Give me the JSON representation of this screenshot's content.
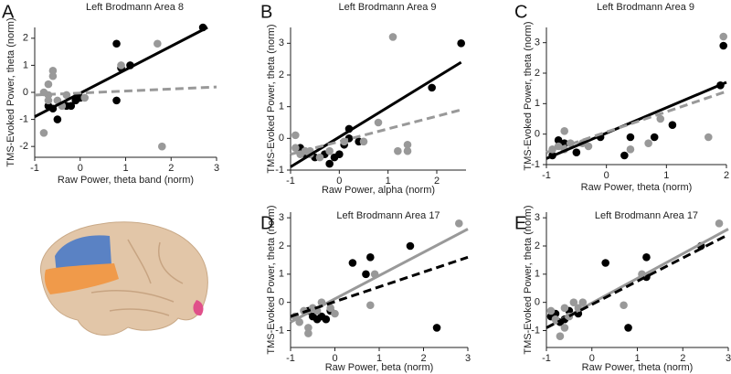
{
  "chart_data": [
    {
      "type": "scatter",
      "label": "A",
      "title": "Left Brodmann Area 8",
      "x_label": "Raw Power, theta band (norm)",
      "y_label": "TMS-Evoked Power, theta (norm)",
      "xlim": [
        -1,
        3
      ],
      "xticks": [
        -1,
        0,
        1,
        2,
        3
      ],
      "ylim": [
        -2.4,
        2.4
      ],
      "yticks": [
        -2,
        -1,
        0,
        1,
        2
      ],
      "series": [
        {
          "color": "#000000",
          "x": [
            -0.6,
            -0.7,
            -0.5,
            -0.3,
            -0.1,
            -0.2,
            0.0,
            0.8,
            0.9,
            1.1,
            0.8,
            2.7
          ],
          "values": [
            -0.6,
            -0.5,
            -1.0,
            -0.5,
            -0.3,
            -0.5,
            -0.2,
            -0.3,
            0.9,
            1.0,
            1.8,
            2.4
          ]
        },
        {
          "color": "#999999",
          "x": [
            -0.8,
            -0.8,
            -0.7,
            -0.6,
            -0.6,
            -0.7,
            -0.5,
            -0.3,
            -0.4,
            0.9,
            0.1,
            1.7,
            1.8,
            -0.7
          ],
          "values": [
            -1.5,
            0.0,
            0.3,
            0.6,
            0.8,
            -0.1,
            -0.3,
            -0.1,
            -0.5,
            1.0,
            -0.2,
            1.8,
            -2.0,
            -0.3
          ]
        }
      ],
      "fits": [
        {
          "color": "#000000",
          "dashed": false,
          "x": [
            -1,
            2.8
          ],
          "values": [
            -0.9,
            2.4
          ]
        },
        {
          "color": "#999999",
          "dashed": true,
          "x": [
            -1,
            3
          ],
          "values": [
            -0.1,
            0.2
          ]
        }
      ]
    },
    {
      "type": "scatter",
      "label": "B",
      "title": "Left Brodmann Area 9",
      "x_label": "Raw Power, alpha (norm)",
      "y_label": "TMS-Evoked Power, theta (norm)",
      "xlim": [
        -1,
        2.6
      ],
      "xticks": [
        -1,
        0,
        1,
        2
      ],
      "ylim": [
        -1,
        3.5
      ],
      "yticks": [
        -1,
        0,
        1,
        2,
        3
      ],
      "series": [
        {
          "color": "#000000",
          "x": [
            -0.8,
            -0.7,
            -0.5,
            -0.3,
            -0.2,
            0.0,
            0.1,
            0.2,
            0.2,
            0.4,
            1.9,
            2.5,
            -0.1
          ],
          "values": [
            -0.3,
            -0.5,
            -0.6,
            -0.5,
            -0.8,
            -0.5,
            -0.2,
            0.0,
            0.3,
            -0.1,
            1.6,
            3.0,
            -0.6
          ]
        },
        {
          "color": "#999999",
          "x": [
            -0.9,
            -0.9,
            -0.8,
            -0.7,
            -0.6,
            -0.6,
            -0.4,
            -0.2,
            0.1,
            0.5,
            0.8,
            1.1,
            1.2,
            1.4,
            1.4
          ],
          "values": [
            -0.3,
            0.1,
            -0.5,
            -0.4,
            -0.4,
            -0.5,
            -0.6,
            -0.4,
            -0.1,
            -0.1,
            0.5,
            3.2,
            -0.4,
            -0.2,
            -0.4
          ]
        }
      ],
      "fits": [
        {
          "color": "#000000",
          "dashed": false,
          "x": [
            -1,
            2.5
          ],
          "values": [
            -0.9,
            2.4
          ]
        },
        {
          "color": "#999999",
          "dashed": true,
          "x": [
            -1,
            2.5
          ],
          "values": [
            -0.5,
            0.9
          ]
        }
      ]
    },
    {
      "type": "scatter",
      "label": "C",
      "title": "Left Brodmann Area 9",
      "x_label": "Raw Power, theta (norm)",
      "y_label": "TMS-Evoked Power, theta (norm)",
      "xlim": [
        -1,
        2
      ],
      "xticks": [
        -1,
        0,
        1,
        2
      ],
      "ylim": [
        -1,
        3.5
      ],
      "yticks": [
        -1,
        0,
        1,
        2,
        3
      ],
      "series": [
        {
          "color": "#000000",
          "x": [
            -0.9,
            -0.8,
            -0.7,
            -0.5,
            -0.1,
            0.3,
            0.4,
            0.8,
            1.1,
            1.9,
            1.95
          ],
          "values": [
            -0.7,
            -0.2,
            -0.3,
            -0.6,
            -0.1,
            -0.7,
            -0.1,
            -0.1,
            0.3,
            1.6,
            2.9
          ]
        },
        {
          "color": "#999999",
          "x": [
            -0.9,
            -0.8,
            -0.7,
            -0.7,
            -0.6,
            -0.3,
            0.4,
            0.7,
            0.9,
            1.7,
            1.95,
            -0.4
          ],
          "values": [
            -0.5,
            -0.4,
            -0.5,
            0.1,
            -0.3,
            -0.4,
            -0.5,
            -0.3,
            0.5,
            -0.1,
            3.2,
            -0.3
          ]
        }
      ],
      "fits": [
        {
          "color": "#000000",
          "dashed": false,
          "x": [
            -1,
            2
          ],
          "values": [
            -0.8,
            1.7
          ]
        },
        {
          "color": "#999999",
          "dashed": true,
          "x": [
            -1,
            2
          ],
          "values": [
            -0.6,
            1.4
          ]
        }
      ]
    },
    {
      "type": "scatter",
      "label": "D",
      "title": "Left Brodmann Area 17",
      "x_label": "Raw Power, beta (norm)",
      "y_label": "TMS-Evoked Power, theta (norm)",
      "xlim": [
        -1,
        3
      ],
      "xticks": [
        -1,
        0,
        1,
        2,
        3
      ],
      "ylim": [
        -1.6,
        3.2
      ],
      "yticks": [
        -1,
        0,
        1,
        2,
        3
      ],
      "series": [
        {
          "color": "#000000",
          "x": [
            -0.6,
            -0.5,
            -0.4,
            -0.3,
            -0.2,
            0.4,
            0.7,
            0.8,
            1.7,
            2.3,
            -0.1
          ],
          "values": [
            -0.3,
            -0.5,
            -0.6,
            -0.5,
            -0.6,
            1.4,
            1.0,
            1.6,
            2.0,
            -0.9,
            -0.3
          ]
        },
        {
          "color": "#999999",
          "x": [
            -0.9,
            -0.8,
            -0.7,
            -0.6,
            -0.6,
            -0.5,
            -0.4,
            -0.1,
            0.0,
            0.9,
            0.8,
            2.8,
            -0.3
          ],
          "values": [
            -0.5,
            -0.7,
            -0.3,
            -1.1,
            -0.9,
            -0.2,
            -0.3,
            -0.2,
            -0.4,
            1.0,
            -0.1,
            2.8,
            0.0
          ]
        }
      ],
      "fits": [
        {
          "color": "#999999",
          "dashed": false,
          "x": [
            -1,
            3
          ],
          "values": [
            -0.7,
            2.6
          ]
        },
        {
          "color": "#000000",
          "dashed": true,
          "x": [
            -1,
            3
          ],
          "values": [
            -0.5,
            1.6
          ]
        }
      ]
    },
    {
      "type": "scatter",
      "label": "E",
      "title": "Left Brodmann Area 17",
      "x_label": "Raw Power, theta (norm)",
      "y_label": "TMS-Evoked Power, theta (norm)",
      "xlim": [
        -1,
        3
      ],
      "xticks": [
        -1,
        0,
        1,
        2,
        3
      ],
      "ylim": [
        -1.6,
        3.2
      ],
      "yticks": [
        -1,
        0,
        1,
        2,
        3
      ],
      "series": [
        {
          "color": "#000000",
          "x": [
            -0.9,
            -0.8,
            -0.6,
            -0.5,
            -0.3,
            0.3,
            0.8,
            1.2,
            1.2,
            2.4,
            -0.7
          ],
          "values": [
            -0.5,
            -0.4,
            -0.6,
            -0.3,
            -0.4,
            1.4,
            -0.9,
            1.6,
            0.9,
            2.0,
            -0.7
          ]
        },
        {
          "color": "#999999",
          "x": [
            -0.9,
            -0.8,
            -0.7,
            -0.6,
            -0.5,
            -0.4,
            -0.3,
            -0.2,
            0.7,
            1.1,
            2.8,
            -0.6
          ],
          "values": [
            -0.3,
            -0.6,
            -1.2,
            -0.2,
            -0.5,
            0.0,
            -0.2,
            0.0,
            -0.1,
            1.0,
            2.8,
            -0.9
          ]
        }
      ],
      "fits": [
        {
          "color": "#999999",
          "dashed": false,
          "x": [
            -1,
            3
          ],
          "values": [
            -0.9,
            2.6
          ]
        },
        {
          "color": "#000000",
          "dashed": true,
          "x": [
            -1,
            3
          ],
          "values": [
            -0.9,
            2.4
          ]
        }
      ]
    }
  ]
}
